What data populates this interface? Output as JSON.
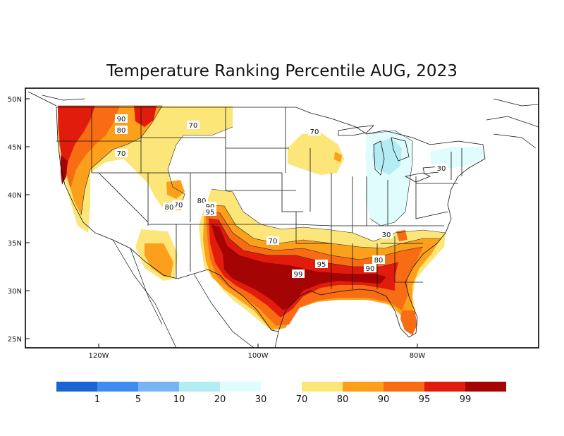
{
  "title": "Temperature Ranking Percentile AUG, 2023",
  "lat_ticks": [
    "50N",
    "45N",
    "40N",
    "35N",
    "30N",
    "25N"
  ],
  "lon_ticks": [
    "120W",
    "100W",
    "80W"
  ],
  "legend": {
    "cold": [
      {
        "color": "#1c64d4",
        "label": "1"
      },
      {
        "color": "#3e8cef",
        "label": "5"
      },
      {
        "color": "#78b4f4",
        "label": "10"
      },
      {
        "color": "#b4ecf4",
        "label": "20"
      },
      {
        "color": "#e0fcfc",
        "label": "30"
      }
    ],
    "warm": [
      {
        "color": "#fce67a",
        "label": "70"
      },
      {
        "color": "#fca01c",
        "label": "80"
      },
      {
        "color": "#f86c14",
        "label": "90"
      },
      {
        "color": "#e21c0c",
        "label": "95"
      },
      {
        "color": "#a40404",
        "label": "99"
      }
    ]
  },
  "contour_labels": [
    "90",
    "80",
    "70",
    "70",
    "70",
    "80",
    "70",
    "80",
    "90",
    "95",
    "70",
    "30",
    "95",
    "99",
    "80",
    "90",
    "30"
  ]
}
